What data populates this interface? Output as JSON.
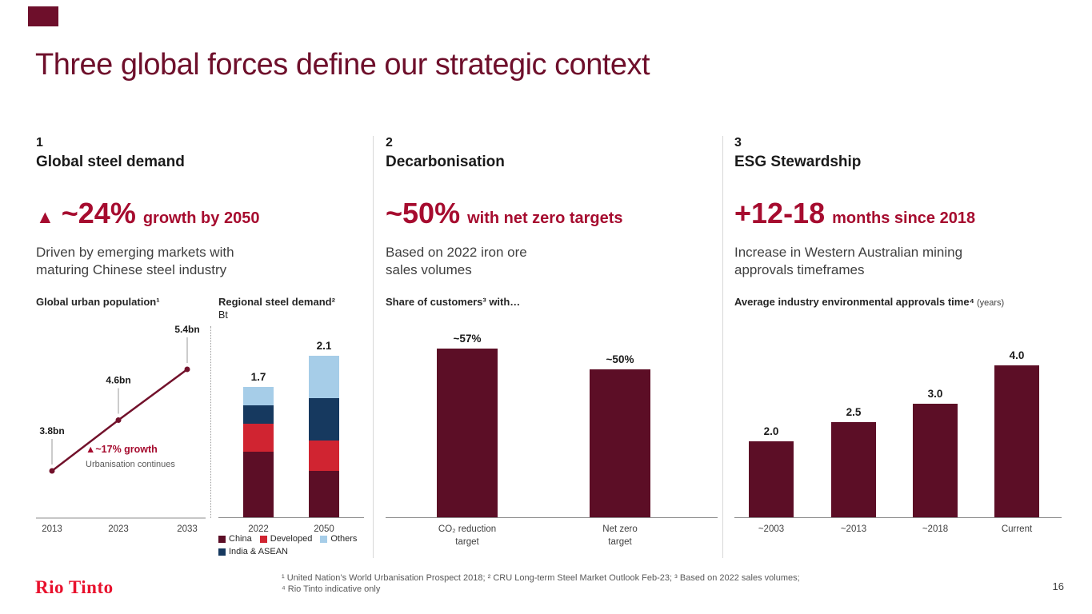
{
  "colors": {
    "accent": "#6E0F2B",
    "stat": "#A60C2F",
    "bar": "#5C0E26",
    "line": "#72112B",
    "logo": "#E8112D"
  },
  "slide": {
    "title": "Three global forces define our strategic context",
    "page_number": "16",
    "logo_text": "Rio Tinto"
  },
  "columns": [
    {
      "number": "1",
      "heading": "Global steel demand",
      "stat_icon": "▲",
      "stat_value": "~24%",
      "stat_suffix": "growth by 2050",
      "body": "Driven by emerging markets with\nmaturing Chinese steel industry"
    },
    {
      "number": "2",
      "heading": "Decarbonisation",
      "stat_value": "~50%",
      "stat_suffix": "with net zero targets",
      "body": "Based on 2022 iron ore\nsales volumes"
    },
    {
      "number": "3",
      "heading": "ESG Stewardship",
      "stat_value": "+12-18",
      "stat_suffix": "months since 2018",
      "body": "Increase in Western Australian mining\napprovals timeframes"
    }
  ],
  "chart_data": [
    {
      "id": "global_urban_population",
      "type": "line",
      "title": "Global urban population¹",
      "x": [
        "2013",
        "2023",
        "2033"
      ],
      "values": [
        3.8,
        4.6,
        5.4
      ],
      "point_labels": [
        "3.8bn",
        "4.6bn",
        "5.4bn"
      ],
      "annotation": "▲~17% growth",
      "annotation_sub": "Urbanisation continues",
      "ylim": [
        3.6,
        5.6
      ],
      "grid": false
    },
    {
      "id": "regional_steel_demand",
      "type": "stacked-bar",
      "title": "Regional steel demand²",
      "unit": "Bt",
      "categories": [
        "2022",
        "2050"
      ],
      "totals": [
        1.7,
        2.1
      ],
      "total_labels": [
        "1.7",
        "2.1"
      ],
      "series": [
        {
          "name": "China",
          "color": "#5C0E26",
          "values": [
            0.85,
            0.6
          ]
        },
        {
          "name": "Developed",
          "color": "#D02431",
          "values": [
            0.37,
            0.4
          ]
        },
        {
          "name": "India & ASEAN",
          "color": "#16395F",
          "values": [
            0.24,
            0.55
          ]
        },
        {
          "name": "Others",
          "color": "#A6CDE8",
          "values": [
            0.24,
            0.55
          ]
        }
      ],
      "legend_order": [
        "China",
        "Developed",
        "Others",
        "India & ASEAN"
      ],
      "legend_position": "bottom",
      "grid": false
    },
    {
      "id": "share_of_customers",
      "type": "bar",
      "title": "Share of customers³ with…",
      "categories": [
        "CO₂ reduction\ntarget",
        "Net zero\ntarget"
      ],
      "values": [
        57,
        50
      ],
      "value_labels": [
        "~57%",
        "~50%"
      ],
      "ylim": [
        0,
        65
      ],
      "grid": false
    },
    {
      "id": "environmental_approvals_time",
      "type": "bar",
      "title": "Average industry environmental approvals time⁴",
      "title_suffix": "(years)",
      "categories": [
        "~2003",
        "~2013",
        "~2018",
        "Current"
      ],
      "values": [
        2.0,
        2.5,
        3.0,
        4.0
      ],
      "value_labels": [
        "2.0",
        "2.5",
        "3.0",
        "4.0"
      ],
      "ylim": [
        0,
        5
      ],
      "grid": false
    }
  ],
  "footnotes": {
    "line1": "¹ United Nation’s World Urbanisation Prospect 2018; ² CRU Long-term Steel Market Outlook Feb-23; ³ Based on 2022 sales volumes;",
    "line2": "⁴ Rio Tinto indicative only"
  }
}
